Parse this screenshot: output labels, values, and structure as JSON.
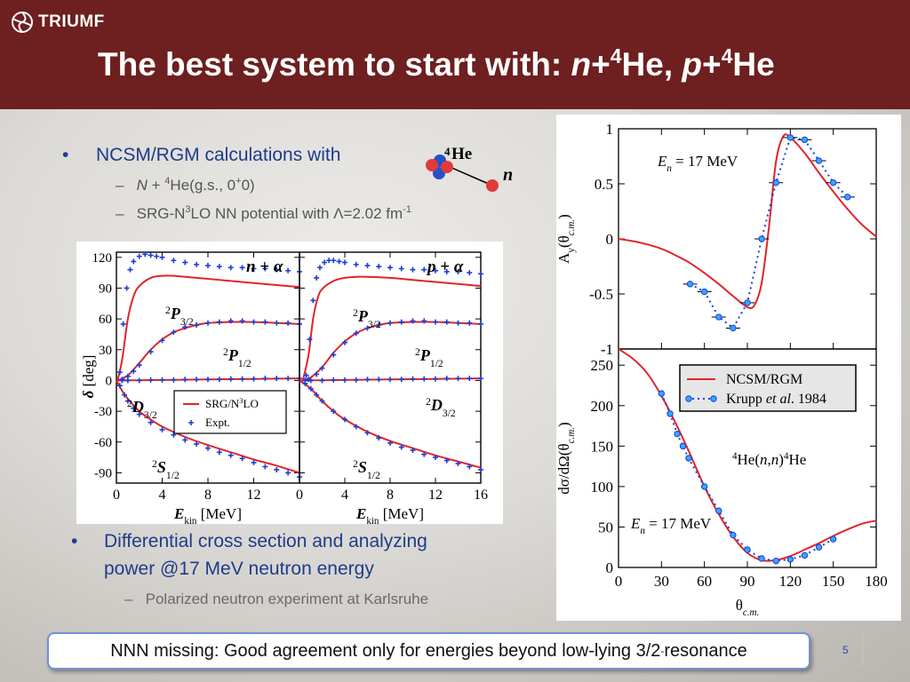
{
  "header": {
    "logo_text": "TRIUMF",
    "title_pre": "The best system to start with: ",
    "title_n": "n",
    "title_plus1": "+",
    "title_sup1": "4",
    "title_he1": "He, ",
    "title_p": "p",
    "title_plus2": "+",
    "title_sup2": "4",
    "title_he2": "He"
  },
  "bullets": {
    "b1": "NCSM/RGM calculations with",
    "b1_sub1_italic": "N",
    "b1_sub1_mid": " + ",
    "b1_sub1_sup": "4",
    "b1_sub1_rest": "He(g.s., 0",
    "b1_sub1_sup2": "+",
    "b1_sub1_end": "0)",
    "b1_sub2_a": "SRG-N",
    "b1_sub2_sup": "3",
    "b1_sub2_b": "LO NN potential with Λ=2.02 fm",
    "b1_sub2_sup2": "-1",
    "b2_line1": "Differential cross section and analyzing",
    "b2_line2": "power @17 MeV neutron energy",
    "b2_sub1": "Polarized neutron experiment at Karlsruhe",
    "bullet_char": "•",
    "dash_char": "–"
  },
  "he_diagram": {
    "he_sup": "4",
    "he_label": "He",
    "n_label": "n"
  },
  "callout": {
    "text_a": "NNN missing: Good agreement only for energies beyond low-lying 3/2",
    "text_sup": "-",
    "text_b": " resonance"
  },
  "page_number": "5",
  "colors": {
    "header": "#6e1f1f",
    "bullet_text": "#1f3c8c",
    "theory": "#e0242a",
    "expt": "#1d3fd6",
    "expt_fill": "#33a6ff"
  },
  "chart_data": [
    {
      "type": "line",
      "panel": "n + alpha",
      "annotation": "n + α",
      "xlabel": "E_kin [MeV]",
      "ylabel": "δ [deg]",
      "xlim": [
        0,
        16
      ],
      "ylim": [
        -100,
        125
      ],
      "xticks": [
        "0",
        "4",
        "8",
        "12"
      ],
      "yticks": [
        "120",
        "90",
        "60",
        "30",
        "0",
        "-30",
        "-60",
        "-90"
      ],
      "legend": {
        "position": "lower-right",
        "entries": [
          "SRG/N³LO",
          "Expt."
        ]
      },
      "series_labels": [
        "²P3/2",
        "²P1/2",
        "²D3/2",
        "²S1/2"
      ],
      "series": [
        {
          "name": "SRG/N3LO P3/2",
          "x": [
            0.1,
            0.5,
            1,
            1.5,
            2,
            3,
            4,
            5,
            6,
            8,
            10,
            12,
            14,
            16
          ],
          "values": [
            0,
            20,
            60,
            82,
            92,
            100,
            102,
            102,
            101,
            99,
            97,
            95,
            93,
            91
          ]
        },
        {
          "name": "SRG/N3LO P1/2",
          "x": [
            0.1,
            1,
            2,
            3,
            4,
            5,
            6,
            7,
            8,
            10,
            12,
            14,
            16
          ],
          "values": [
            0,
            5,
            17,
            30,
            40,
            47,
            51,
            54,
            56,
            57,
            57,
            56,
            55
          ]
        },
        {
          "name": "SRG/N3LO D3/2",
          "x": [
            0,
            4,
            8,
            12,
            16
          ],
          "values": [
            0,
            0.5,
            1,
            1.5,
            2
          ]
        },
        {
          "name": "SRG/N3LO S1/2",
          "x": [
            0,
            0.5,
            1,
            2,
            3,
            4,
            6,
            8,
            10,
            12,
            14,
            16
          ],
          "values": [
            0,
            -10,
            -18,
            -30,
            -38,
            -45,
            -55,
            -63,
            -70,
            -77,
            -83,
            -90
          ]
        },
        {
          "name": "Expt. P3/2",
          "x": [
            0.3,
            0.6,
            0.9,
            1.2,
            1.5,
            2,
            2.5,
            3,
            3.5,
            4,
            5,
            6,
            7,
            8,
            9,
            10,
            11,
            12,
            13,
            14,
            15,
            16
          ],
          "values": [
            8,
            55,
            90,
            108,
            116,
            121,
            123,
            122,
            121,
            120,
            117,
            115,
            113,
            112,
            111,
            110,
            110,
            109,
            109,
            108,
            107,
            106
          ]
        },
        {
          "name": "Expt. P1/2",
          "x": [
            0.5,
            1,
            1.5,
            2,
            3,
            4,
            5,
            6,
            7,
            8,
            9,
            10,
            11,
            12,
            13,
            14,
            15,
            16
          ],
          "values": [
            1,
            4,
            9,
            15,
            28,
            39,
            47,
            52,
            54,
            56,
            57,
            58,
            58,
            57,
            57,
            56,
            56,
            55
          ]
        },
        {
          "name": "Expt. D3/2",
          "x": [
            0.5,
            1,
            2,
            3,
            4,
            5,
            6,
            7,
            8,
            9,
            10,
            11,
            12,
            13,
            14,
            15,
            16
          ],
          "values": [
            0,
            0,
            0,
            0.5,
            0.5,
            0.5,
            1,
            1,
            1,
            1,
            1.5,
            1.5,
            1.5,
            2,
            2,
            2,
            2
          ]
        },
        {
          "name": "Expt. S1/2",
          "x": [
            0.3,
            0.7,
            1,
            1.5,
            2,
            3,
            4,
            5,
            6,
            7,
            8,
            9,
            10,
            11,
            12,
            13,
            14,
            15,
            16
          ],
          "values": [
            -5,
            -14,
            -20,
            -27,
            -33,
            -41,
            -48,
            -53,
            -58,
            -62,
            -66,
            -70,
            -73,
            -76,
            -80,
            -84,
            -87,
            -90,
            -94
          ]
        }
      ]
    },
    {
      "type": "line",
      "panel": "p + alpha",
      "annotation": "p + α",
      "xlabel": "E_kin [MeV]",
      "xlim": [
        0,
        16
      ],
      "ylim": [
        -100,
        125
      ],
      "xticks": [
        "0",
        "4",
        "8",
        "12",
        "16"
      ],
      "series_labels": [
        "²P3/2",
        "²P1/2",
        "²D3/2",
        "²S1/2"
      ],
      "series": [
        {
          "name": "SRG/N3LO P3/2",
          "x": [
            0.3,
            0.8,
            1.2,
            1.6,
            2,
            3,
            4,
            5,
            6,
            8,
            10,
            12,
            14,
            16
          ],
          "values": [
            0,
            25,
            60,
            80,
            89,
            97,
            100,
            101,
            101,
            100,
            98,
            96,
            94,
            92
          ]
        },
        {
          "name": "SRG/N3LO P1/2",
          "x": [
            0.3,
            1,
            2,
            3,
            4,
            5,
            6,
            7,
            8,
            10,
            12,
            14,
            16
          ],
          "values": [
            0,
            3,
            13,
            27,
            38,
            46,
            51,
            54,
            56,
            57,
            57,
            56,
            55
          ]
        },
        {
          "name": "SRG/N3LO D3/2",
          "x": [
            0,
            4,
            8,
            12,
            16
          ],
          "values": [
            0,
            0.5,
            1,
            1.5,
            2
          ]
        },
        {
          "name": "SRG/N3LO S1/2",
          "x": [
            0,
            1,
            2,
            3,
            4,
            6,
            8,
            10,
            12,
            14,
            16
          ],
          "values": [
            0,
            -8,
            -20,
            -30,
            -38,
            -50,
            -59,
            -66,
            -73,
            -79,
            -85
          ]
        },
        {
          "name": "Expt. P3/2",
          "x": [
            0.6,
            0.9,
            1.2,
            1.5,
            1.8,
            2.2,
            2.6,
            3,
            3.5,
            4,
            5,
            6,
            7,
            8,
            9,
            10,
            11,
            12,
            13,
            14,
            15,
            16
          ],
          "values": [
            5,
            40,
            78,
            100,
            110,
            115,
            117,
            117,
            116,
            115,
            113,
            112,
            111,
            110,
            109,
            108,
            108,
            107,
            106,
            106,
            105,
            104
          ]
        },
        {
          "name": "Expt. P1/2",
          "x": [
            0.8,
            1.5,
            2,
            3,
            4,
            5,
            6,
            7,
            8,
            9,
            10,
            11,
            12,
            13,
            14,
            15,
            16
          ],
          "values": [
            1,
            6,
            12,
            25,
            37,
            46,
            51,
            54,
            56,
            57,
            58,
            58,
            57,
            57,
            56,
            56,
            55
          ]
        },
        {
          "name": "Expt. D3/2",
          "x": [
            0.5,
            1,
            2,
            3,
            4,
            5,
            6,
            7,
            8,
            9,
            10,
            11,
            12,
            13,
            14,
            15,
            16
          ],
          "values": [
            0,
            0,
            0,
            0.5,
            0.5,
            0.5,
            1,
            1,
            1,
            1,
            1.5,
            1.5,
            1.5,
            2,
            2,
            2,
            2
          ]
        },
        {
          "name": "Expt. S1/2",
          "x": [
            0.5,
            1,
            1.5,
            2,
            3,
            4,
            5,
            6,
            7,
            8,
            9,
            10,
            11,
            12,
            13,
            14,
            15,
            16
          ],
          "values": [
            -3,
            -8,
            -14,
            -20,
            -30,
            -38,
            -45,
            -51,
            -56,
            -61,
            -65,
            -68,
            -72,
            -75,
            -78,
            -81,
            -84,
            -87
          ]
        }
      ]
    },
    {
      "type": "line",
      "panel": "analyzing power",
      "annotation": "E_n = 17 MeV",
      "ylabel": "A_y(θ_c.m.)",
      "xlim": [
        0,
        180
      ],
      "ylim": [
        -1,
        1
      ],
      "yticks": [
        "1",
        "0.5",
        "0",
        "-0.5",
        "-1"
      ],
      "series": [
        {
          "name": "NCSM/RGM",
          "x": [
            0,
            10,
            20,
            30,
            40,
            50,
            60,
            70,
            80,
            90,
            95,
            100,
            105,
            110,
            115,
            120,
            130,
            140,
            150,
            160,
            170,
            180
          ],
          "values": [
            0,
            -0.02,
            -0.05,
            -0.09,
            -0.15,
            -0.22,
            -0.31,
            -0.41,
            -0.52,
            -0.62,
            -0.6,
            -0.4,
            0.1,
            0.7,
            0.93,
            0.92,
            0.78,
            0.6,
            0.43,
            0.27,
            0.13,
            0.02
          ]
        },
        {
          "name": "Krupp et al. 1984",
          "x": [
            50,
            60,
            70,
            80,
            90,
            100,
            110,
            120,
            130,
            140,
            150,
            160
          ],
          "values": [
            -0.41,
            -0.48,
            -0.71,
            -0.81,
            -0.58,
            0.0,
            0.51,
            0.92,
            0.9,
            0.71,
            0.51,
            0.38
          ]
        }
      ]
    },
    {
      "type": "line",
      "panel": "differential cross section",
      "annotation": "E_n = 17 MeV",
      "reaction": "⁴He(n,n)⁴He",
      "xlabel": "θ_c.m.",
      "ylabel": "dσ/dΩ(θ_c.m.)",
      "xlim": [
        0,
        180
      ],
      "ylim": [
        0,
        270
      ],
      "xticks": [
        "0",
        "30",
        "60",
        "90",
        "120",
        "150",
        "180"
      ],
      "yticks": [
        "0",
        "50",
        "100",
        "150",
        "200",
        "250"
      ],
      "legend": {
        "position": "top-right",
        "entries": [
          "NCSM/RGM",
          "Krupp et al. 1984"
        ]
      },
      "series": [
        {
          "name": "NCSM/RGM",
          "x": [
            0,
            10,
            20,
            30,
            40,
            50,
            60,
            70,
            80,
            90,
            100,
            110,
            120,
            130,
            140,
            150,
            160,
            170,
            180
          ],
          "values": [
            270,
            258,
            240,
            212,
            178,
            140,
            100,
            66,
            38,
            18,
            9,
            9,
            14,
            22,
            30,
            39,
            47,
            54,
            58
          ]
        },
        {
          "name": "Krupp et al. 1984",
          "x": [
            30,
            36,
            41,
            45,
            49,
            60,
            70,
            80,
            90,
            100,
            110,
            120,
            130,
            140,
            150
          ],
          "values": [
            215,
            190,
            165,
            150,
            135,
            100,
            70,
            40,
            22,
            11,
            8,
            10,
            15,
            25,
            35
          ]
        }
      ]
    }
  ]
}
